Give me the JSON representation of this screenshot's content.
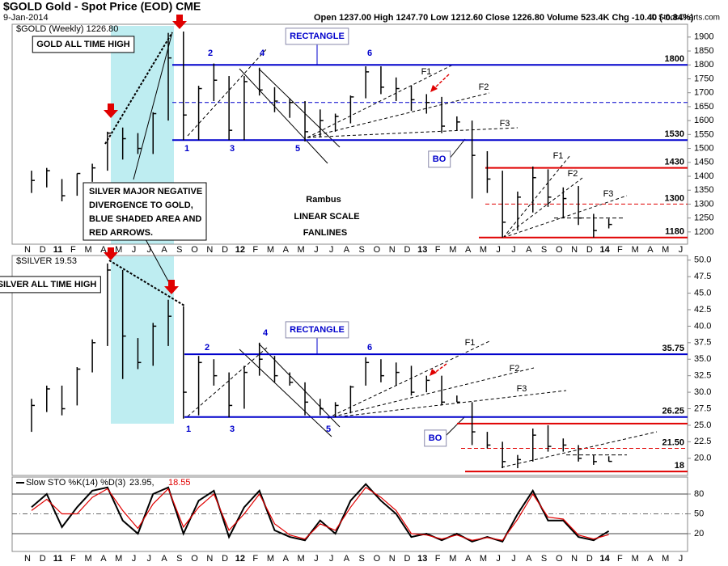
{
  "chart_data": [
    {
      "type": "ohlc",
      "title": "$GOLD Gold - Spot Price (EOD) CME",
      "date": "9-Jan-2014",
      "quote": "Open 1237.00  High 1247.70  Low 1212.60  Close 1226.80  Volume 523.4K  Chg -10.40 (-0.84%)",
      "credit": "© StockCharts.com",
      "categories": [
        "N",
        "D",
        "11",
        "F",
        "M",
        "A",
        "M",
        "J",
        "J",
        "A",
        "S",
        "O",
        "N",
        "D",
        "12",
        "F",
        "M",
        "A",
        "M",
        "J",
        "J",
        "A",
        "S",
        "O",
        "N",
        "D",
        "13",
        "F",
        "M",
        "A",
        "M",
        "J",
        "J",
        "A",
        "S",
        "O",
        "N",
        "D",
        "14",
        "F",
        "M",
        "A",
        "M",
        "J"
      ],
      "series": [
        {
          "name": "$GOLD (Weekly) 1226.80",
          "color": "#000000",
          "high": [
            1420,
            1430,
            1390,
            1410,
            1445,
            1560,
            1575,
            1555,
            1630,
            1915,
            1920,
            1725,
            1805,
            1760,
            1760,
            1790,
            1720,
            1680,
            1670,
            1640,
            1625,
            1690,
            1795,
            1795,
            1755,
            1725,
            1695,
            1685,
            1615,
            1600,
            1490,
            1420,
            1345,
            1435,
            1425,
            1360,
            1365,
            1265,
            1247.7,
            null,
            null,
            null,
            null,
            null
          ],
          "low": [
            1340,
            1360,
            1310,
            1330,
            1380,
            1420,
            1460,
            1480,
            1480,
            1600,
            1530,
            1530,
            1670,
            1530,
            1530,
            1690,
            1630,
            1610,
            1525,
            1540,
            1560,
            1590,
            1680,
            1695,
            1670,
            1635,
            1625,
            1555,
            1565,
            1320,
            1340,
            1180,
            1205,
            1270,
            1290,
            1250,
            1225,
            1180,
            1212.6,
            null,
            null,
            null,
            null,
            null
          ],
          "close": [
            1385,
            1420,
            1330,
            1410,
            1430,
            1555,
            1535,
            1500,
            1625,
            1825,
            1620,
            1715,
            1745,
            1565,
            1740,
            1710,
            1670,
            1665,
            1560,
            1600,
            1615,
            1685,
            1775,
            1720,
            1715,
            1675,
            1665,
            1580,
            1595,
            1475,
            1390,
            1235,
            1325,
            1395,
            1325,
            1320,
            1250,
            1205,
            1226.8,
            null,
            null,
            null,
            null,
            null
          ]
        }
      ],
      "ylim": [
        1156,
        1946
      ],
      "yticks": [
        1200,
        1250,
        1300,
        1350,
        1400,
        1450,
        1500,
        1550,
        1600,
        1650,
        1700,
        1750,
        1800,
        1850,
        1900
      ],
      "levels": [
        {
          "value": 1800,
          "label": "1800",
          "color": "#0000cc"
        },
        {
          "value": 1530,
          "label": "1530",
          "color": "#0000cc"
        },
        {
          "value": 1665,
          "color": "#0000cc"
        },
        {
          "value": 1430,
          "label": "1430",
          "color": "#e00000"
        },
        {
          "value": 1300,
          "label": "1300",
          "color": "#e00000"
        },
        {
          "value": 1180,
          "label": "1180",
          "color": "#e00000"
        },
        {
          "value": 1250,
          "color": "#000000"
        }
      ],
      "annotations": [
        "GOLD ALL TIME HIGH",
        "RECTANGLE",
        "SILVER MAJOR NEGATIVE",
        "DIVERGENCE TO GOLD,",
        "BLUE SHADED AREA AND",
        "RED ARROWS.",
        "Rambus",
        "LINEAR SCALE",
        "FANLINES",
        "BO",
        "F1",
        "F2",
        "F3",
        "F1",
        "F2",
        "F3",
        "1",
        "2",
        "3",
        "4",
        "5",
        "6"
      ]
    },
    {
      "type": "ohlc",
      "categories": [
        "N",
        "D",
        "11",
        "F",
        "M",
        "A",
        "M",
        "J",
        "J",
        "A",
        "S",
        "O",
        "N",
        "D",
        "12",
        "F",
        "M",
        "A",
        "M",
        "J",
        "J",
        "A",
        "S",
        "O",
        "N",
        "D",
        "13",
        "F",
        "M",
        "A",
        "M",
        "J",
        "J",
        "A",
        "S",
        "O",
        "N",
        "D",
        "14",
        "F",
        "M",
        "A",
        "M",
        "J"
      ],
      "series": [
        {
          "name": "$SILVER 19.53",
          "color": "#000000",
          "high": [
            29,
            31,
            31,
            33.8,
            38,
            49.5,
            48.5,
            38.2,
            40.5,
            44,
            43,
            35.5,
            35,
            33,
            34,
            37.5,
            35.5,
            33,
            31.5,
            29,
            28.5,
            31,
            35.3,
            35,
            34.5,
            34,
            32.5,
            32.5,
            29.5,
            28.5,
            24,
            22.5,
            20.5,
            24.5,
            25,
            23,
            22,
            20.5,
            20.3,
            null,
            null,
            null,
            null,
            null
          ],
          "low": [
            24,
            27,
            26.5,
            28,
            33,
            37,
            32,
            33.5,
            34,
            37,
            26,
            26.5,
            31,
            26.2,
            27.5,
            32.5,
            31.5,
            31,
            26.5,
            26.5,
            26.2,
            26.8,
            31,
            31.5,
            31,
            29.5,
            30,
            28,
            28.5,
            22,
            21.5,
            18.5,
            18.5,
            19.5,
            21,
            21,
            19.5,
            19,
            19.5,
            null,
            null,
            null,
            null,
            null
          ],
          "close": [
            28,
            30.5,
            27.5,
            33.5,
            37.5,
            48.5,
            38.5,
            34.5,
            40,
            41.5,
            30,
            34.5,
            32.5,
            28,
            33,
            35,
            32.5,
            31.5,
            28.5,
            27.5,
            28,
            30.8,
            34.5,
            32.5,
            33,
            30,
            31.8,
            28.5,
            28.5,
            24,
            22,
            19.5,
            19.8,
            23.5,
            21.8,
            22,
            20,
            19.5,
            19.53,
            null,
            null,
            null,
            null,
            null
          ]
        }
      ],
      "ylim": [
        17.4,
        50.7
      ],
      "yticks": [
        {
          "value": 20,
          "label": "20.0"
        },
        {
          "value": 22.5,
          "label": "22.5"
        },
        {
          "value": 25,
          "label": "25.0"
        },
        {
          "value": 27.5,
          "label": "27.5"
        },
        {
          "value": 30,
          "label": "30.0"
        },
        {
          "value": 32.5,
          "label": "32.5"
        },
        {
          "value": 35,
          "label": "35.0"
        },
        {
          "value": 37.5,
          "label": "37.5"
        },
        {
          "value": 40,
          "label": "40.0"
        },
        {
          "value": 42.5,
          "label": "42.5"
        },
        {
          "value": 45,
          "label": "45.0"
        },
        {
          "value": 47.5,
          "label": "47.5"
        },
        {
          "value": 50,
          "label": "50.0"
        }
      ],
      "levels": [
        {
          "value": 35.75,
          "label": "35.75",
          "color": "#0000cc"
        },
        {
          "value": 26.25,
          "label": "26.25",
          "color": "#0000cc"
        },
        {
          "value": 25.25,
          "color": "#e00000"
        },
        {
          "value": 21.5,
          "label": "21.50",
          "color": "#e00000"
        },
        {
          "value": 18,
          "label": "18",
          "color": "#e00000"
        },
        {
          "value": 20.5,
          "color": "#000000"
        }
      ],
      "annotations": [
        "SILVER ALL TIME HIGH",
        "RECTANGLE",
        "BO",
        "F1",
        "F2",
        "F3",
        "1",
        "2",
        "3",
        "4",
        "5",
        "6"
      ]
    },
    {
      "type": "line",
      "indicator": "Slow STO %K(14) %D(3)",
      "k_label": "23.95,",
      "d_label": "18.55",
      "categories": [
        "N",
        "D",
        "11",
        "F",
        "M",
        "A",
        "M",
        "J",
        "J",
        "A",
        "S",
        "O",
        "N",
        "D",
        "12",
        "F",
        "M",
        "A",
        "M",
        "J",
        "J",
        "A",
        "S",
        "O",
        "N",
        "D",
        "13",
        "F",
        "M",
        "A",
        "M",
        "J",
        "J",
        "A",
        "S",
        "O",
        "N",
        "D",
        "14",
        "F",
        "M",
        "A",
        "M",
        "J"
      ],
      "series": [
        {
          "color": "#000000",
          "values": [
            60,
            80,
            30,
            60,
            85,
            90,
            40,
            20,
            80,
            90,
            20,
            70,
            85,
            15,
            60,
            85,
            25,
            15,
            10,
            40,
            20,
            70,
            95,
            70,
            50,
            15,
            20,
            10,
            20,
            8,
            15,
            8,
            50,
            85,
            40,
            40,
            15,
            10,
            23.95,
            null,
            null,
            null,
            null,
            null
          ]
        },
        {
          "color": "#e00000",
          "values": [
            55,
            72,
            50,
            50,
            75,
            88,
            55,
            28,
            65,
            88,
            30,
            60,
            80,
            25,
            50,
            80,
            35,
            18,
            12,
            35,
            25,
            60,
            90,
            75,
            55,
            20,
            18,
            12,
            18,
            10,
            14,
            10,
            42,
            80,
            45,
            42,
            18,
            12,
            18.55,
            null,
            null,
            null,
            null,
            null
          ]
        }
      ],
      "ylim": [
        -6.9,
        105.7
      ],
      "yticks": [
        20,
        50,
        80
      ]
    }
  ]
}
